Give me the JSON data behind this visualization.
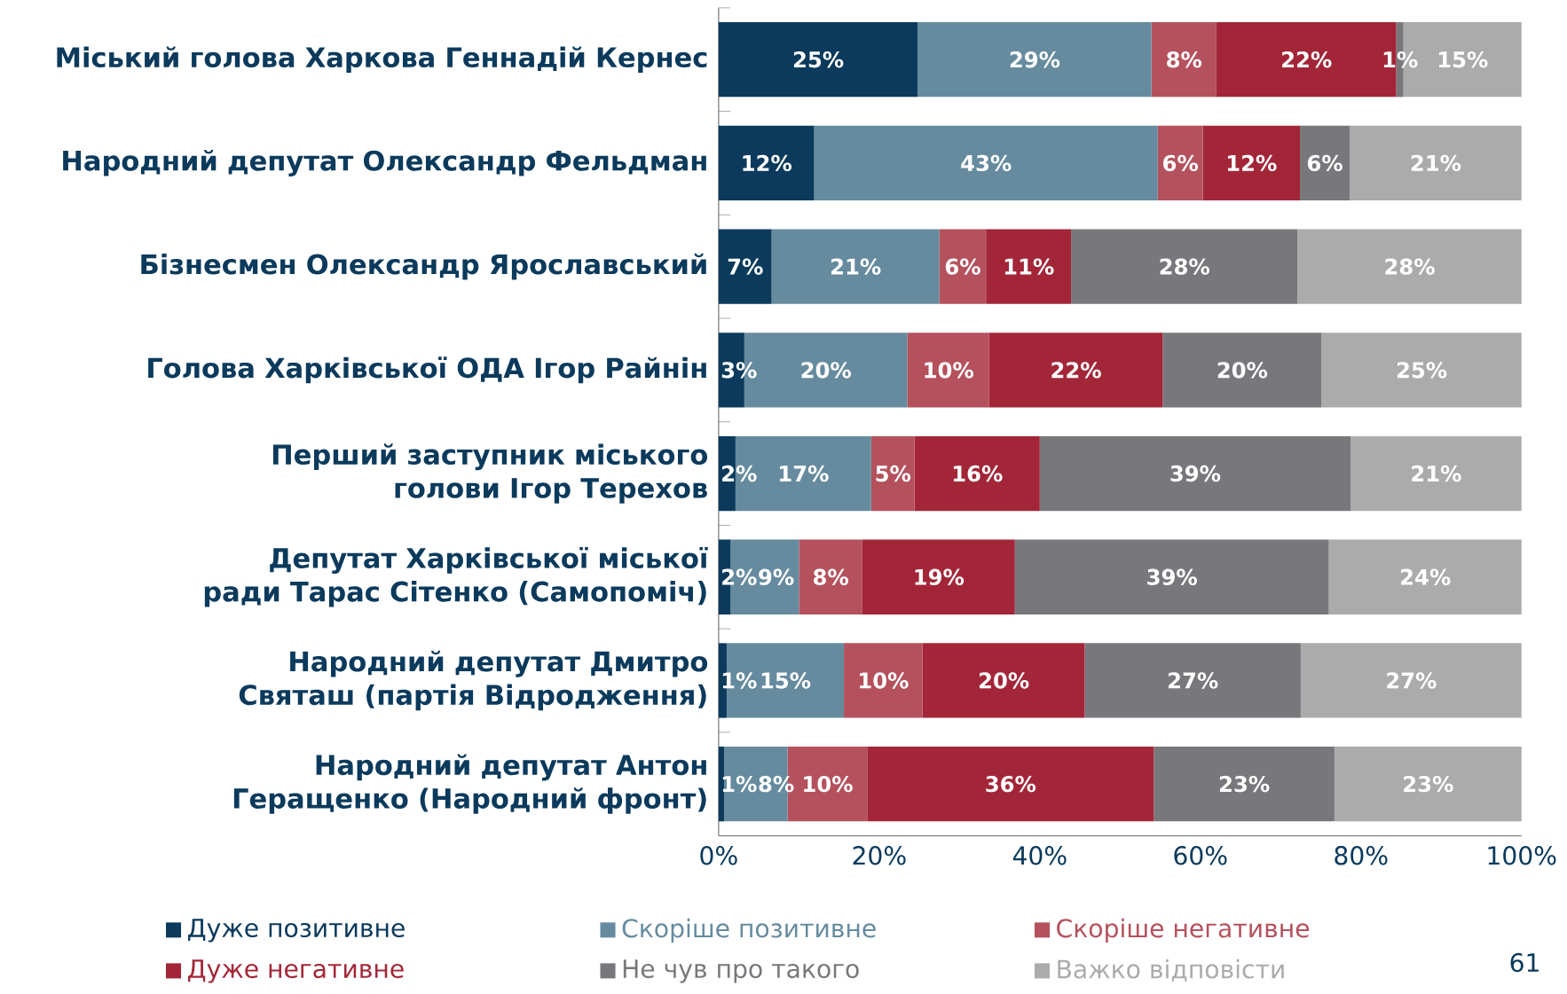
{
  "chart_data": {
    "type": "bar",
    "orientation": "horizontal",
    "stacked": true,
    "legend": "bottom",
    "categories": [
      "Міський голова Харкова Геннадій Кернес",
      "Народний депутат Олександр Фельдман",
      "Бізнесмен Олександр Ярославський",
      "Голова Харківської ОДА Ігор Райнін",
      "Перший заступник міського голови Ігор Терехов",
      "Депутат Харківської міської ради Тарас Сітенко (Самопоміч)",
      "Народний депутат Дмитро Святаш (партія Відродження)",
      "Народний депутат Антон Геращенко (Народний фронт)"
    ],
    "xlim": [
      0,
      100
    ],
    "xticks": [
      {
        "value": 0,
        "label": "0%"
      },
      {
        "value": 20,
        "label": "20%"
      },
      {
        "value": 40,
        "label": "40%"
      },
      {
        "value": 60,
        "label": "60%"
      },
      {
        "value": 80,
        "label": "80%"
      },
      {
        "value": 100,
        "label": "100%"
      }
    ],
    "series": [
      {
        "name": "Дуже позитивне",
        "color": "#0b3a5c",
        "values": [
          24.8,
          11.9,
          6.6,
          3.2,
          2.1,
          1.5,
          1.0,
          0.7
        ],
        "value_labels": [
          "25%",
          "12%",
          "7%",
          "3%",
          "2%",
          "2%",
          "1%",
          "1%"
        ]
      },
      {
        "name": "Скоріше позитивне",
        "color": "#668b9f",
        "values": [
          29.1,
          42.8,
          20.9,
          20.3,
          16.9,
          8.5,
          14.6,
          7.9
        ],
        "value_labels": [
          "29%",
          "43%",
          "21%",
          "20%",
          "17%",
          "9%",
          "15%",
          "8%"
        ]
      },
      {
        "name": "Скоріше негативне",
        "color": "#b5515d",
        "values": [
          8.1,
          5.6,
          5.8,
          10.2,
          5.4,
          7.9,
          9.8,
          9.9
        ],
        "value_labels": [
          "8%",
          "6%",
          "6%",
          "10%",
          "5%",
          "8%",
          "10%",
          "10%"
        ]
      },
      {
        "name": "Дуже негативне",
        "color": "#a32638",
        "values": [
          22.4,
          12.1,
          10.6,
          21.6,
          15.6,
          19.0,
          20.2,
          35.7
        ],
        "value_labels": [
          "22%",
          "12%",
          "11%",
          "22%",
          "16%",
          "19%",
          "20%",
          "36%"
        ]
      },
      {
        "name": "Не чув про такого",
        "color": "#78787c",
        "values": [
          0.9,
          6.2,
          28.2,
          19.8,
          38.7,
          39.1,
          26.9,
          22.5
        ],
        "value_labels": [
          "1%",
          "6%",
          "28%",
          "20%",
          "39%",
          "39%",
          "27%",
          "23%"
        ]
      },
      {
        "name": "Важко відповісти",
        "color": "#ababab",
        "values": [
          14.7,
          21.4,
          27.9,
          24.9,
          21.3,
          24.0,
          27.5,
          23.3
        ],
        "value_labels": [
          "15%",
          "21%",
          "28%",
          "25%",
          "21%",
          "24%",
          "27%",
          "23%"
        ]
      }
    ],
    "annotations": [
      "61"
    ]
  }
}
